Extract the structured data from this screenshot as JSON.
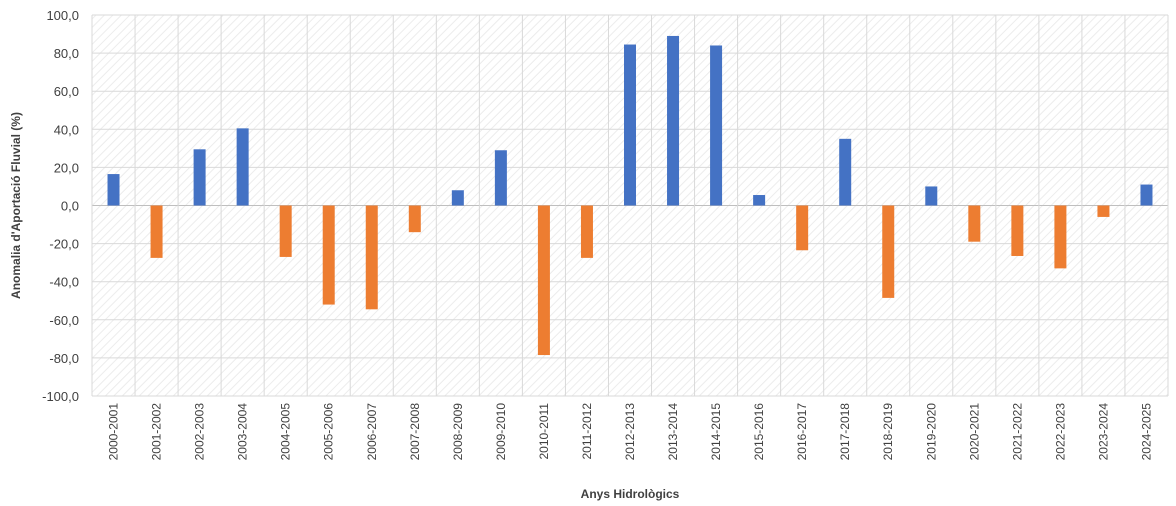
{
  "chart_data": {
    "type": "bar",
    "title": "",
    "xlabel": "Anys Hidrològics",
    "ylabel": "Anomalia d'Aportació  Fluvial (%)",
    "ylim": [
      -100,
      100
    ],
    "y_ticks": [
      -100,
      -80,
      -60,
      -40,
      -20,
      0,
      20,
      40,
      60,
      80,
      100
    ],
    "y_tick_labels": [
      "-100,0",
      "-80,0",
      "-60,0",
      "-40,0",
      "-20,0",
      "0,0",
      "20,0",
      "40,0",
      "60,0",
      "80,0",
      "100,0"
    ],
    "grid": true,
    "legend": "none",
    "categories": [
      "2000-2001",
      "2001-2002",
      "2002-2003",
      "2003-2004",
      "2004-2005",
      "2005-2006",
      "2006-2007",
      "2007-2008",
      "2008-2009",
      "2009-2010",
      "2010-2011",
      "2011-2012",
      "2012-2013",
      "2013-2014",
      "2014-2015",
      "2015-2016",
      "2016-2017",
      "2017-2018",
      "2018-2019",
      "2019-2020",
      "2020-2021",
      "2021-2022",
      "2022-2023",
      "2023-2024",
      "2024-2025"
    ],
    "values": [
      16.5,
      -27.5,
      29.5,
      40.5,
      -27,
      -52,
      -54.5,
      -14,
      8,
      29,
      -78.5,
      -27.5,
      84.5,
      89,
      84,
      5.5,
      -23.5,
      35,
      -48.5,
      10,
      -19,
      -26.5,
      -33,
      -6,
      11
    ],
    "colors": {
      "positive": "#4472C4",
      "negative": "#ED7D31"
    }
  }
}
